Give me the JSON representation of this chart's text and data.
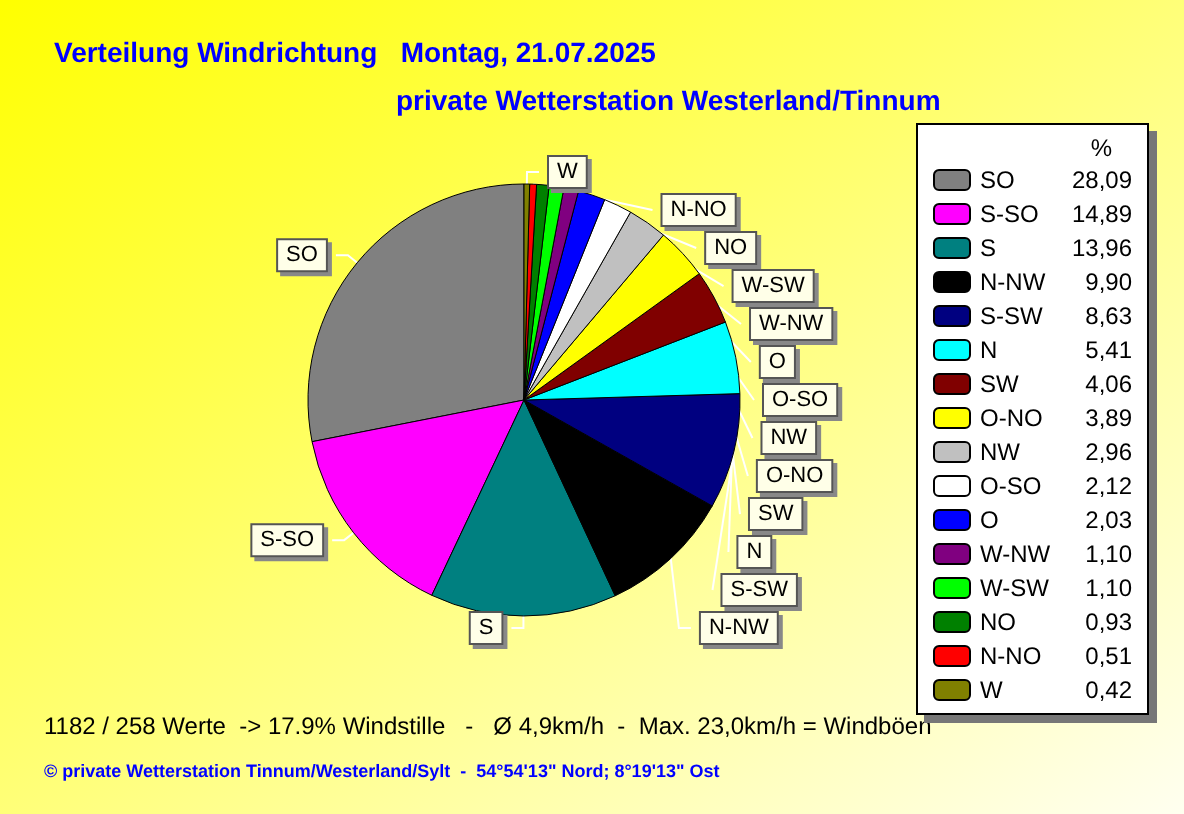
{
  "chart_data": {
    "type": "pie",
    "title": "Verteilung Windrichtung   Montag, 21.07.2025",
    "subtitle": "private Wetterstation Westerland/Tinnum",
    "legend_title": "%",
    "legend": "right",
    "categories": [
      "SO",
      "S-SO",
      "S",
      "N-NW",
      "S-SW",
      "N",
      "SW",
      "O-NO",
      "NW",
      "O-SO",
      "O",
      "W-NW",
      "W-SW",
      "NO",
      "N-NO",
      "W"
    ],
    "values": [
      28.09,
      14.89,
      13.96,
      9.9,
      8.63,
      5.41,
      4.06,
      3.89,
      2.96,
      2.12,
      2.03,
      1.1,
      1.1,
      0.93,
      0.51,
      0.42
    ],
    "value_labels": [
      "28,09",
      "14,89",
      "13,96",
      "9,90",
      "8,63",
      "5,41",
      "4,06",
      "3,89",
      "2,96",
      "2,12",
      "2,03",
      "1,10",
      "1,10",
      "0,93",
      "0,51",
      "0,42"
    ],
    "colors": [
      "#808080",
      "#ff00ff",
      "#008080",
      "#000000",
      "#000080",
      "#00ffff",
      "#800000",
      "#ffff00",
      "#c0c0c0",
      "#ffffff",
      "#0000ff",
      "#800080",
      "#00ff00",
      "#008000",
      "#ff0000",
      "#808000"
    ],
    "annotations": [
      "1182 / 258 Werte  -> 17.9% Windstille   -   Ø 4,9km/h  -  Max. 23,0km/h = Windböen",
      "© private Wetterstation Tinnum/Westerland/Sylt  -  54°54'13\" Nord; 8°19'13\" Ost"
    ]
  }
}
